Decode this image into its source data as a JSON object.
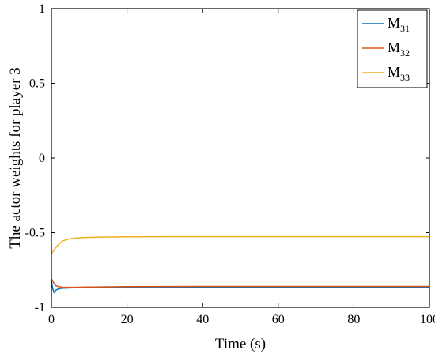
{
  "chart_data": {
    "type": "line",
    "xlabel": "Time (s)",
    "ylabel": "The actor weights for player 3",
    "xlim": [
      0,
      100
    ],
    "ylim": [
      -1,
      1
    ],
    "xticks": [
      0,
      20,
      40,
      60,
      80,
      100
    ],
    "xtick_labels": [
      "0",
      "20",
      "40",
      "60",
      "80",
      "100"
    ],
    "yticks": [
      1,
      0.5,
      0,
      -0.5,
      -1
    ],
    "ytick_labels": [
      "1",
      "0.5",
      "0",
      "-0.5",
      "-1"
    ],
    "grid": false,
    "legend_position": "top-right",
    "series": [
      {
        "name": "M",
        "subscript": "31",
        "color": "#0072BD",
        "x": [
          0,
          0.3,
          0.7,
          1.2,
          2,
          3,
          5,
          10,
          20,
          40,
          60,
          80,
          100
        ],
        "y": [
          -0.82,
          -0.87,
          -0.9,
          -0.885,
          -0.875,
          -0.872,
          -0.87,
          -0.868,
          -0.866,
          -0.866,
          -0.866,
          -0.866,
          -0.866
        ]
      },
      {
        "name": "M",
        "subscript": "32",
        "color": "#D95319",
        "x": [
          0,
          0.3,
          0.7,
          1.2,
          2,
          3,
          5,
          10,
          20,
          40,
          60,
          80,
          100
        ],
        "y": [
          -0.81,
          -0.82,
          -0.84,
          -0.855,
          -0.862,
          -0.865,
          -0.866,
          -0.864,
          -0.861,
          -0.86,
          -0.86,
          -0.86,
          -0.86
        ]
      },
      {
        "name": "M",
        "subscript": "33",
        "color": "#EDB120",
        "x": [
          0,
          0.3,
          0.7,
          1.2,
          2,
          3,
          5,
          7,
          10,
          15,
          20,
          30,
          40,
          60,
          80,
          100
        ],
        "y": [
          -0.64,
          -0.63,
          -0.615,
          -0.6,
          -0.575,
          -0.555,
          -0.54,
          -0.535,
          -0.532,
          -0.529,
          -0.528,
          -0.527,
          -0.527,
          -0.527,
          -0.527,
          -0.527
        ]
      }
    ]
  }
}
